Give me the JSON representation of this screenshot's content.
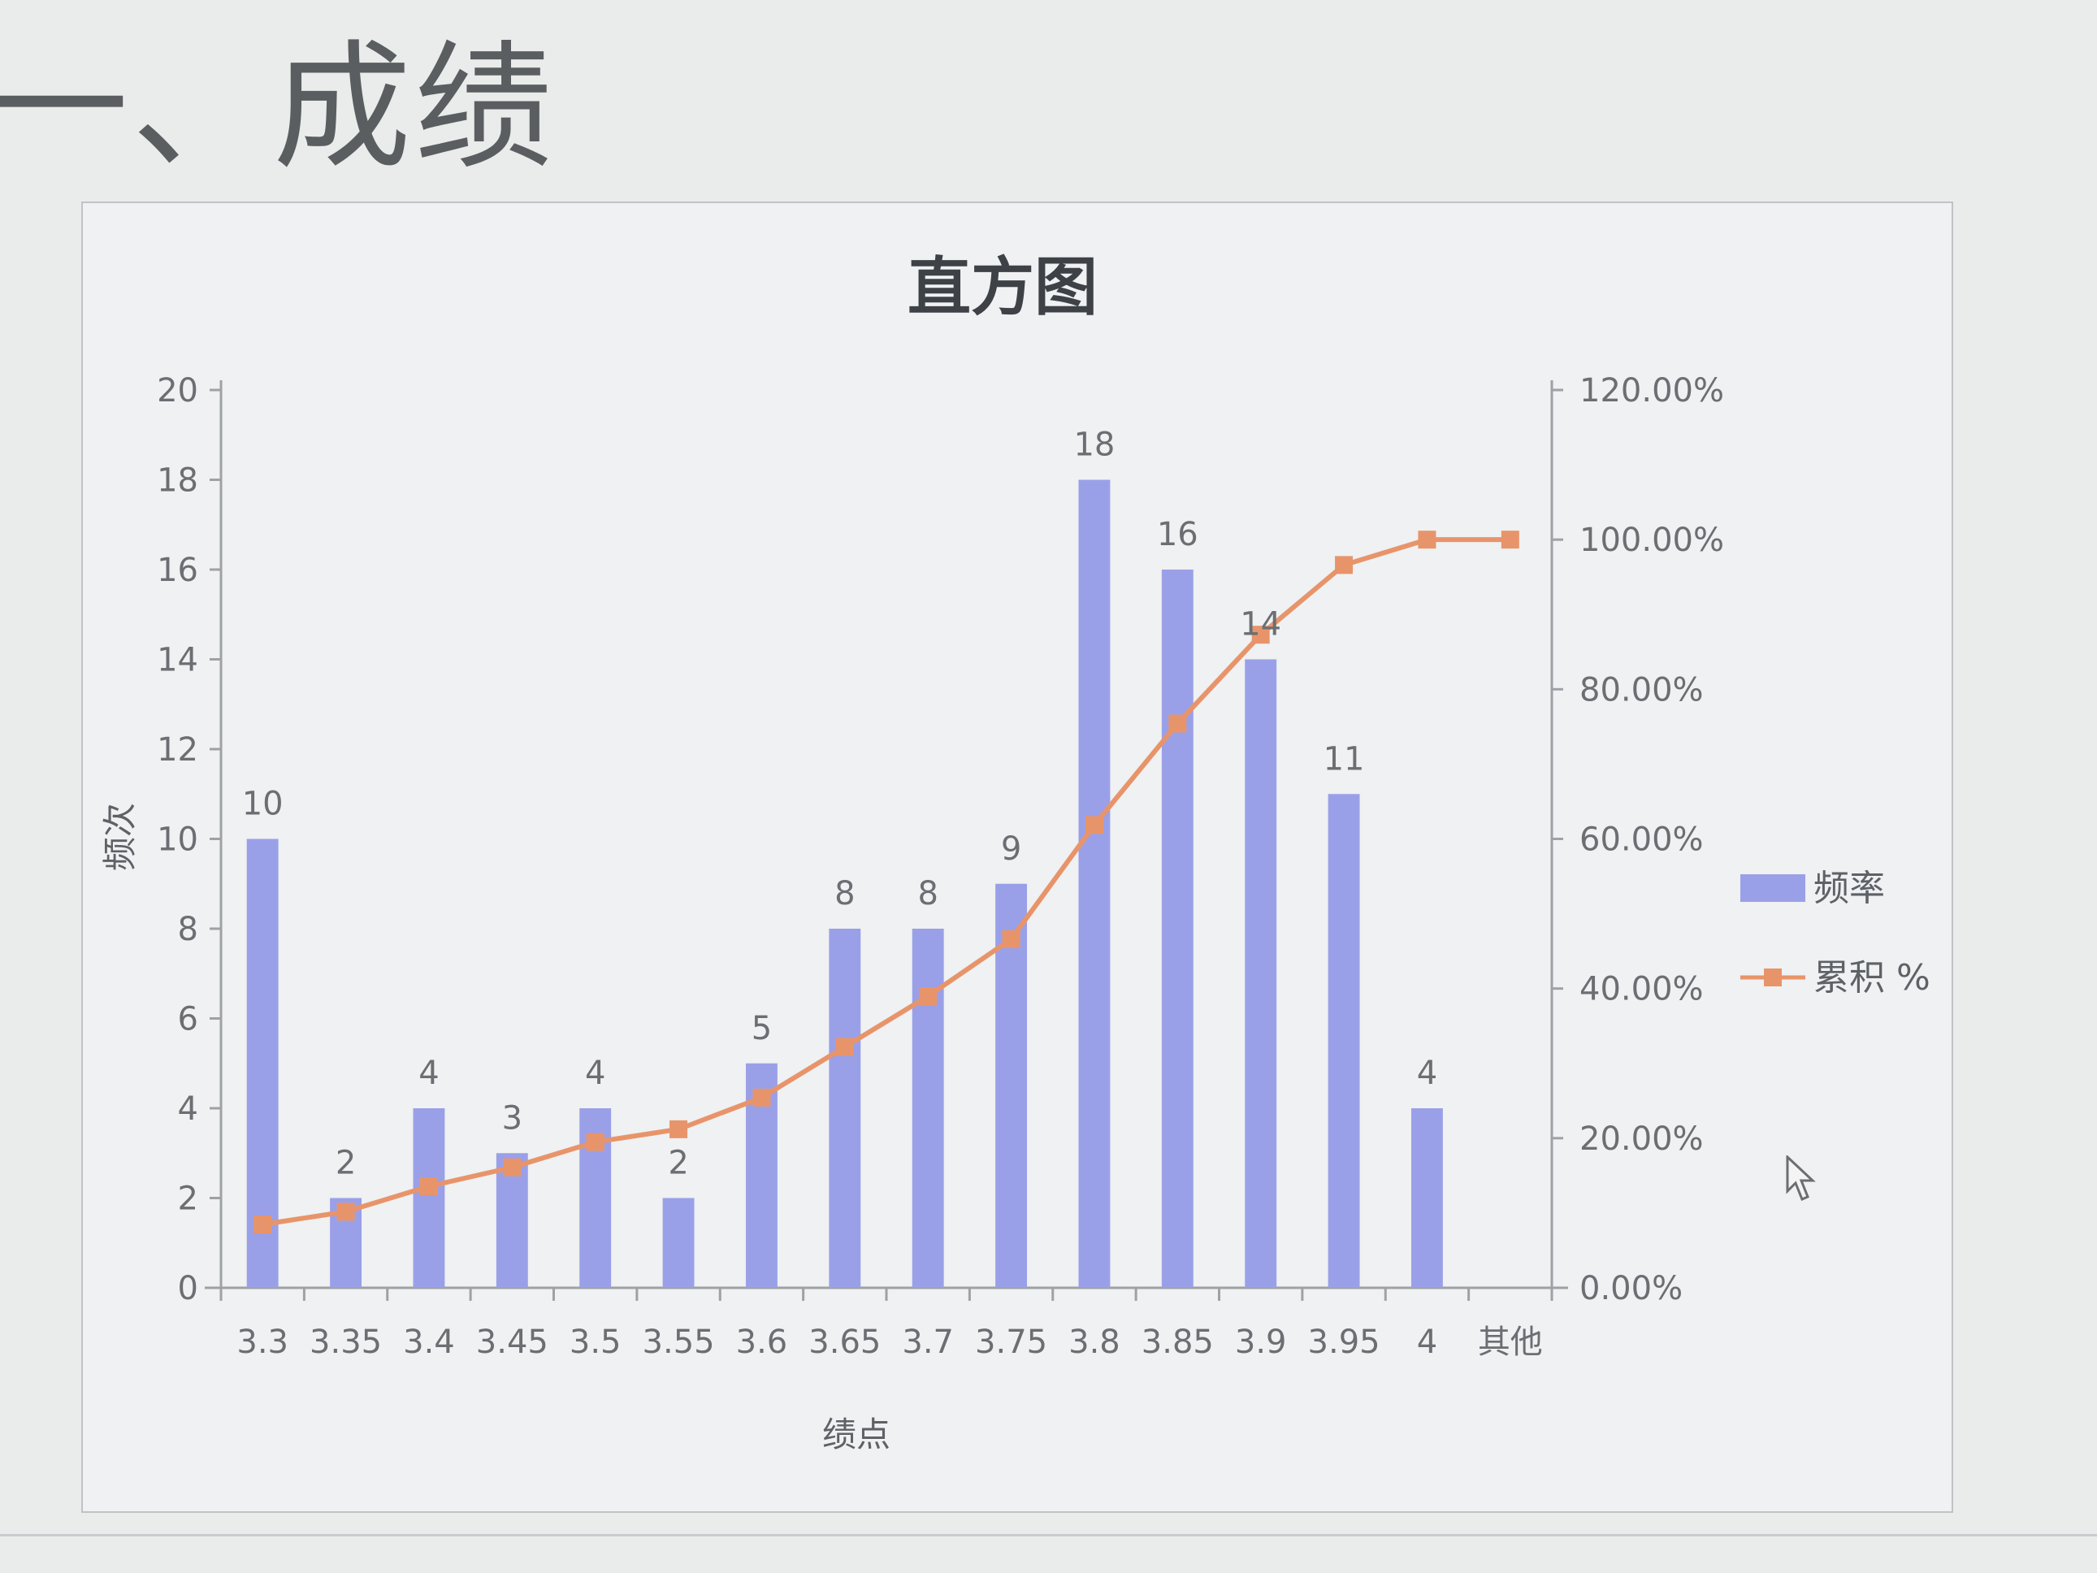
{
  "slide": {
    "heading": "一、成绩"
  },
  "chart_data": {
    "type": "bar",
    "title": "直方图",
    "xlabel": "绩点",
    "ylabel": "频次",
    "ylim": [
      0,
      20
    ],
    "y2lim": [
      0,
      1.2
    ],
    "categories": [
      "3.3",
      "3.35",
      "3.4",
      "3.45",
      "3.5",
      "3.55",
      "3.6",
      "3.65",
      "3.7",
      "3.75",
      "3.8",
      "3.85",
      "3.9",
      "3.95",
      "4",
      "其他"
    ],
    "yticks": [
      "0",
      "2",
      "4",
      "6",
      "8",
      "10",
      "12",
      "14",
      "16",
      "18",
      "20"
    ],
    "y2ticks": [
      "0.00%",
      "20.00%",
      "40.00%",
      "60.00%",
      "80.00%",
      "100.00%",
      "120.00%"
    ],
    "series": [
      {
        "name": "频率",
        "kind": "bar",
        "color": "#9aa0e8",
        "values": [
          10,
          2,
          4,
          3,
          4,
          2,
          5,
          8,
          8,
          9,
          18,
          16,
          14,
          11,
          4,
          0
        ],
        "labels": [
          "10",
          "2",
          "4",
          "3",
          "4",
          "2",
          "5",
          "8",
          "8",
          "9",
          "18",
          "16",
          "14",
          "11",
          "4",
          ""
        ]
      },
      {
        "name": "累积 %",
        "kind": "line",
        "axis": "right",
        "color": "#e8946a",
        "values": [
          0.0847,
          0.1017,
          0.1356,
          0.161,
          0.1949,
          0.2119,
          0.2542,
          0.322,
          0.3898,
          0.4661,
          0.6186,
          0.7542,
          0.8729,
          0.9661,
          1.0,
          1.0
        ]
      }
    ],
    "grid": false,
    "legend": "right"
  }
}
